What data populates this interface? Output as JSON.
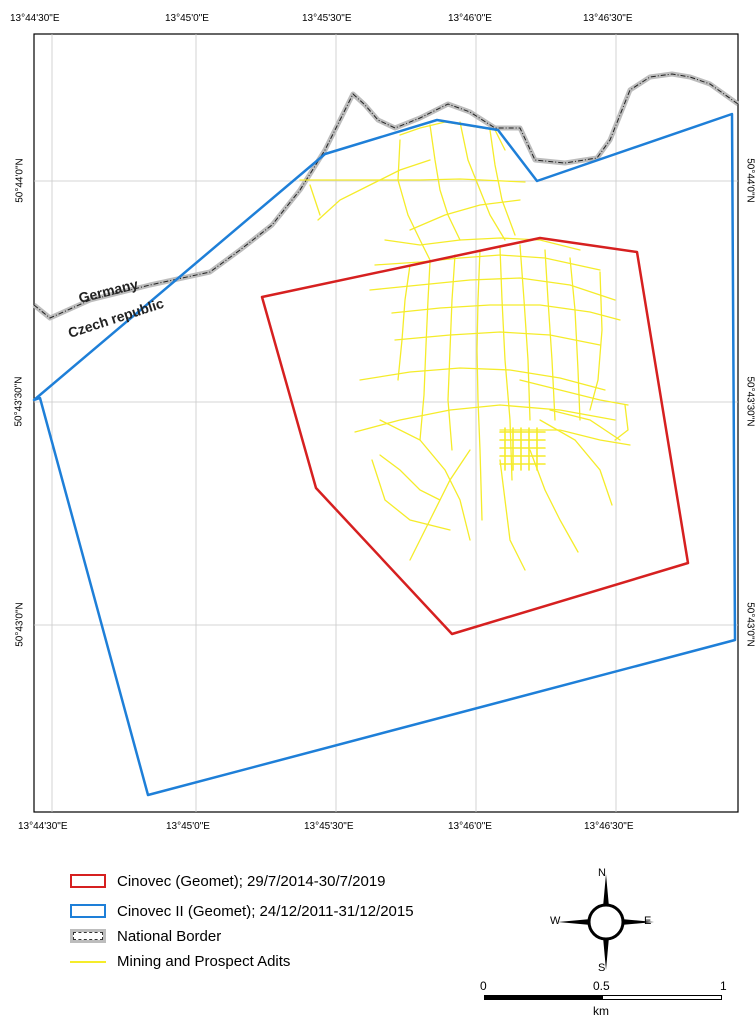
{
  "coords": {
    "top_lon": [
      "13°44'30\"E",
      "13°45'0\"E",
      "13°45'30\"E",
      "13°46'0\"E",
      "13°46'30\"E"
    ],
    "bottom_lon": [
      "13°44'30\"E",
      "13°45'0\"E",
      "13°45'30\"E",
      "13°46'0\"E",
      "13°46'30\"E"
    ],
    "left_lat": [
      "50°44'0\"N",
      "50°43'30\"N",
      "50°43'0\"N"
    ],
    "right_lat": [
      "50°44'0\"N",
      "50°43'30\"N",
      "50°43'0\"N"
    ]
  },
  "map_labels": {
    "germany": "Germany",
    "czech": "Czech republic"
  },
  "legend": {
    "items": [
      {
        "label": "Cinovec (Geomet); 29/7/2014-30/7/2019",
        "color": "#d62020"
      },
      {
        "label": "Cinovec II (Geomet); 24/12/2011-31/12/2015",
        "color": "#1e7fd8"
      },
      {
        "label": "National Border",
        "color": "#555555"
      },
      {
        "label": "Mining and Prospect Adits",
        "color": "#ffff33"
      }
    ]
  },
  "compass": {
    "n": "N",
    "s": "S",
    "e": "E",
    "w": "W"
  },
  "scale": {
    "ticks": [
      "0",
      "0.5",
      "1"
    ],
    "unit": "km"
  }
}
